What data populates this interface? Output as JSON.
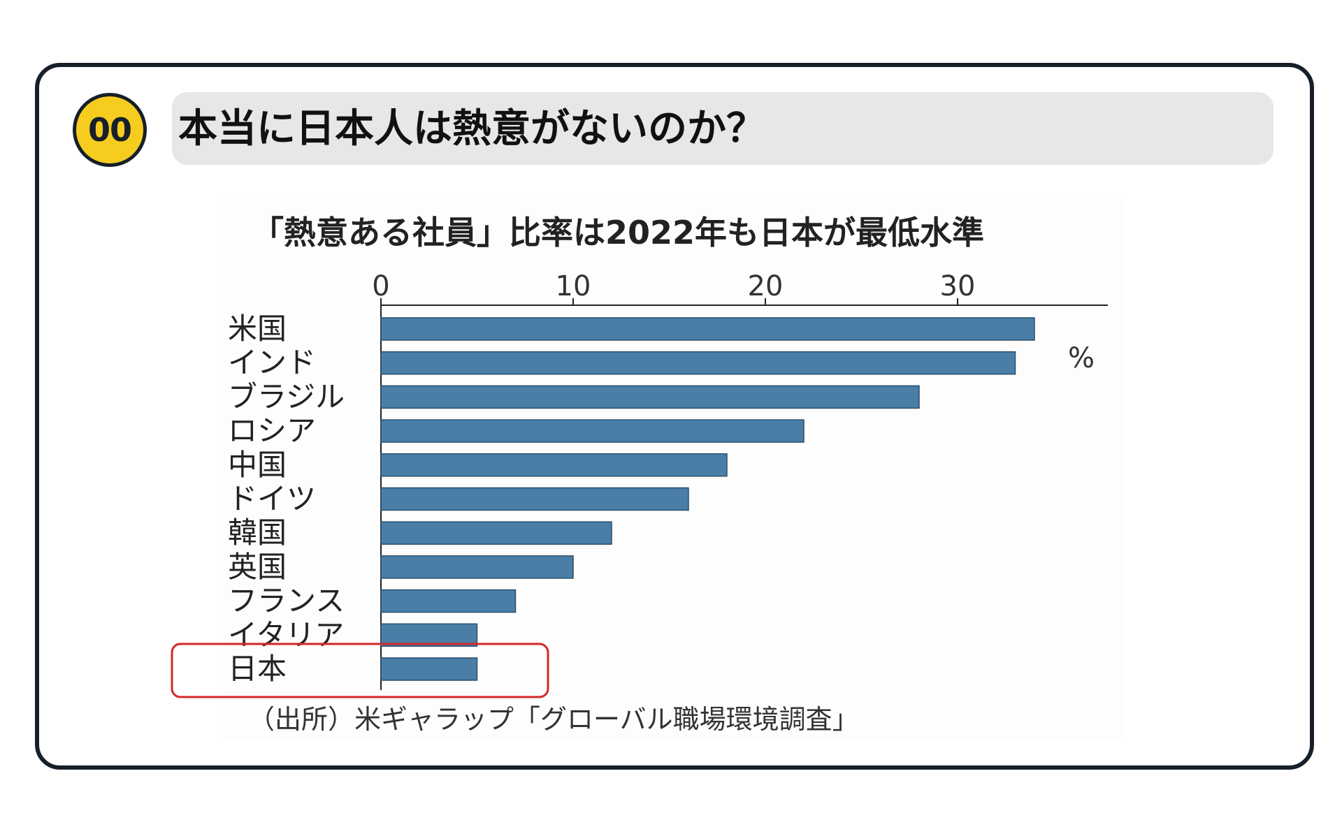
{
  "header": {
    "badge": "00",
    "title": "本当に日本人は熱意がないのか？"
  },
  "chart_data": {
    "type": "bar",
    "orientation": "horizontal",
    "title": "「熱意ある社員」比率は2022年も日本が最低水準",
    "unit": "%",
    "categories": [
      "米国",
      "インド",
      "ブラジル",
      "ロシア",
      "中国",
      "ドイツ",
      "韓国",
      "英国",
      "フランス",
      "イタリア",
      "日本"
    ],
    "values": [
      34,
      33,
      28,
      22,
      18,
      16,
      12,
      10,
      7,
      5,
      5
    ],
    "x_ticks": [
      0,
      10,
      20,
      30
    ],
    "xlim": [
      0,
      37.8
    ],
    "highlight": "日本",
    "bar_color": "#4a7ea7",
    "highlight_color": "#d42828",
    "source": "（出所）米ギャラップ「グローバル職場環境調査」"
  }
}
